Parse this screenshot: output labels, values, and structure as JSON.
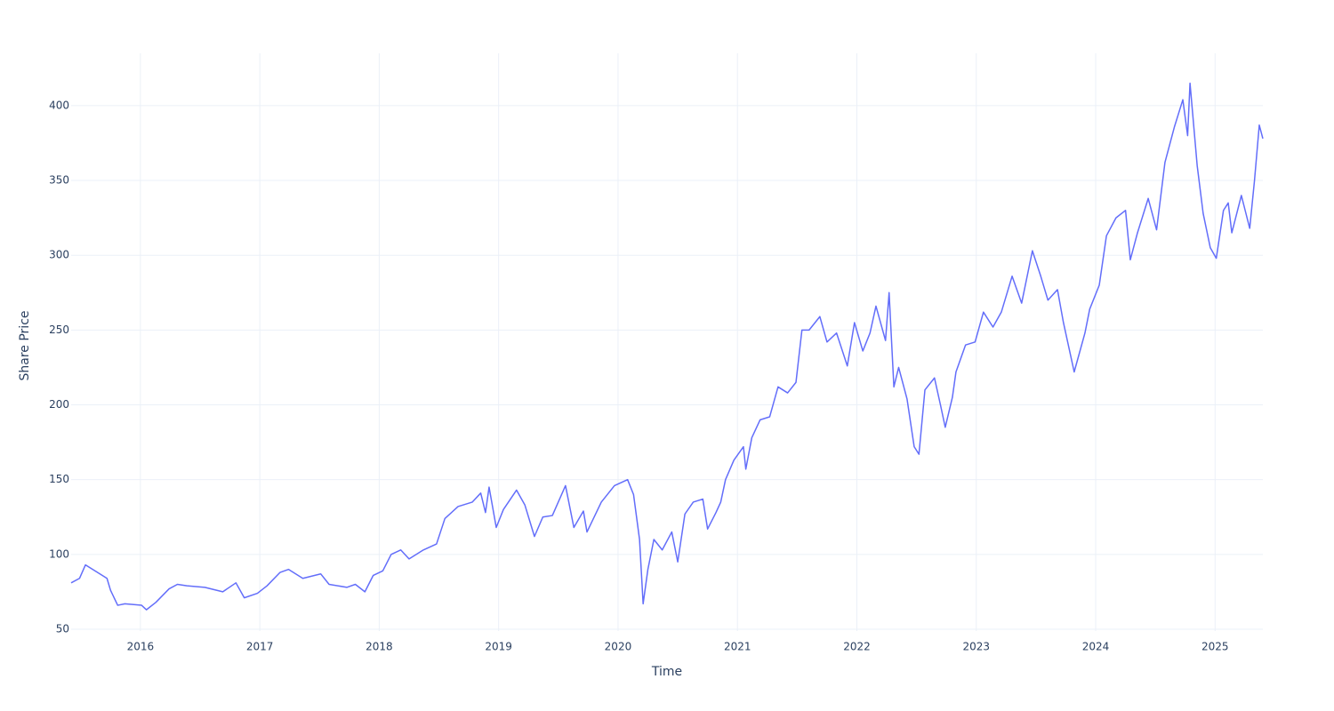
{
  "chart_data": {
    "type": "line",
    "x_label": "Time",
    "y_label": "Share Price",
    "x": [
      2015.42,
      2015.49,
      2015.54,
      2015.64,
      2015.72,
      2015.75,
      2015.81,
      2015.87,
      2016.01,
      2016.05,
      2016.13,
      2016.24,
      2016.31,
      2016.39,
      2016.54,
      2016.69,
      2016.8,
      2016.87,
      2016.98,
      2017.06,
      2017.17,
      2017.24,
      2017.36,
      2017.51,
      2017.58,
      2017.73,
      2017.8,
      2017.88,
      2017.95,
      2018.03,
      2018.1,
      2018.18,
      2018.25,
      2018.37,
      2018.48,
      2018.55,
      2018.66,
      2018.78,
      2018.85,
      2018.89,
      2018.92,
      2018.98,
      2019.04,
      2019.15,
      2019.22,
      2019.3,
      2019.37,
      2019.45,
      2019.56,
      2019.63,
      2019.71,
      2019.74,
      2019.86,
      2019.97,
      2020.08,
      2020.13,
      2020.18,
      2020.21,
      2020.25,
      2020.3,
      2020.37,
      2020.45,
      2020.5,
      2020.56,
      2020.63,
      2020.71,
      2020.75,
      2020.82,
      2020.86,
      2020.9,
      2020.97,
      2021.05,
      2021.07,
      2021.12,
      2021.19,
      2021.27,
      2021.34,
      2021.42,
      2021.49,
      2021.54,
      2021.6,
      2021.69,
      2021.75,
      2021.83,
      2021.92,
      2021.98,
      2022.05,
      2022.11,
      2022.16,
      2022.24,
      2022.27,
      2022.31,
      2022.35,
      2022.42,
      2022.48,
      2022.52,
      2022.57,
      2022.65,
      2022.7,
      2022.74,
      2022.8,
      2022.83,
      2022.91,
      2022.99,
      2023.06,
      2023.14,
      2023.21,
      2023.3,
      2023.38,
      2023.47,
      2023.54,
      2023.6,
      2023.68,
      2023.73,
      2023.82,
      2023.91,
      2023.95,
      2024.03,
      2024.09,
      2024.17,
      2024.25,
      2024.29,
      2024.35,
      2024.44,
      2024.51,
      2024.58,
      2024.66,
      2024.73,
      2024.77,
      2024.79,
      2024.85,
      2024.9,
      2024.96,
      2025.01,
      2025.07,
      2025.11,
      2025.14,
      2025.22,
      2025.29,
      2025.33,
      2025.37,
      2025.4
    ],
    "series": [
      {
        "color": "#636efa",
        "values": [
          81,
          84,
          93,
          88,
          84,
          76,
          66,
          67,
          66,
          63,
          68,
          77,
          80,
          79,
          78,
          75,
          81,
          71,
          74,
          79,
          88,
          90,
          84,
          87,
          80,
          78,
          80,
          75,
          86,
          89,
          100,
          103,
          97,
          103,
          107,
          124,
          132,
          135,
          141,
          128,
          145,
          118,
          130,
          143,
          133,
          112,
          125,
          126,
          146,
          118,
          129,
          115,
          135,
          146,
          150,
          140,
          110,
          67,
          90,
          110,
          103,
          115,
          95,
          127,
          135,
          137,
          117,
          128,
          135,
          150,
          163,
          172,
          157,
          178,
          190,
          192,
          212,
          208,
          215,
          250,
          250,
          259,
          242,
          248,
          226,
          255,
          236,
          248,
          266,
          243,
          275,
          212,
          225,
          204,
          172,
          167,
          210,
          218,
          200,
          185,
          205,
          222,
          240,
          242,
          262,
          252,
          262,
          286,
          268,
          303,
          286,
          270,
          277,
          255,
          222,
          248,
          264,
          280,
          313,
          325,
          330,
          297,
          315,
          338,
          317,
          362,
          386,
          404,
          380,
          415,
          360,
          328,
          305,
          298,
          330,
          335,
          315,
          340,
          318,
          350,
          387,
          378
        ]
      }
    ],
    "xlim": [
      2015.42,
      2025.4
    ],
    "xticks": [
      2016,
      2017,
      2018,
      2019,
      2020,
      2021,
      2022,
      2023,
      2024,
      2025
    ],
    "ylim": [
      48.8,
      435
    ],
    "yticks": [
      50,
      100,
      150,
      200,
      250,
      300,
      350,
      400
    ],
    "grid": true
  }
}
